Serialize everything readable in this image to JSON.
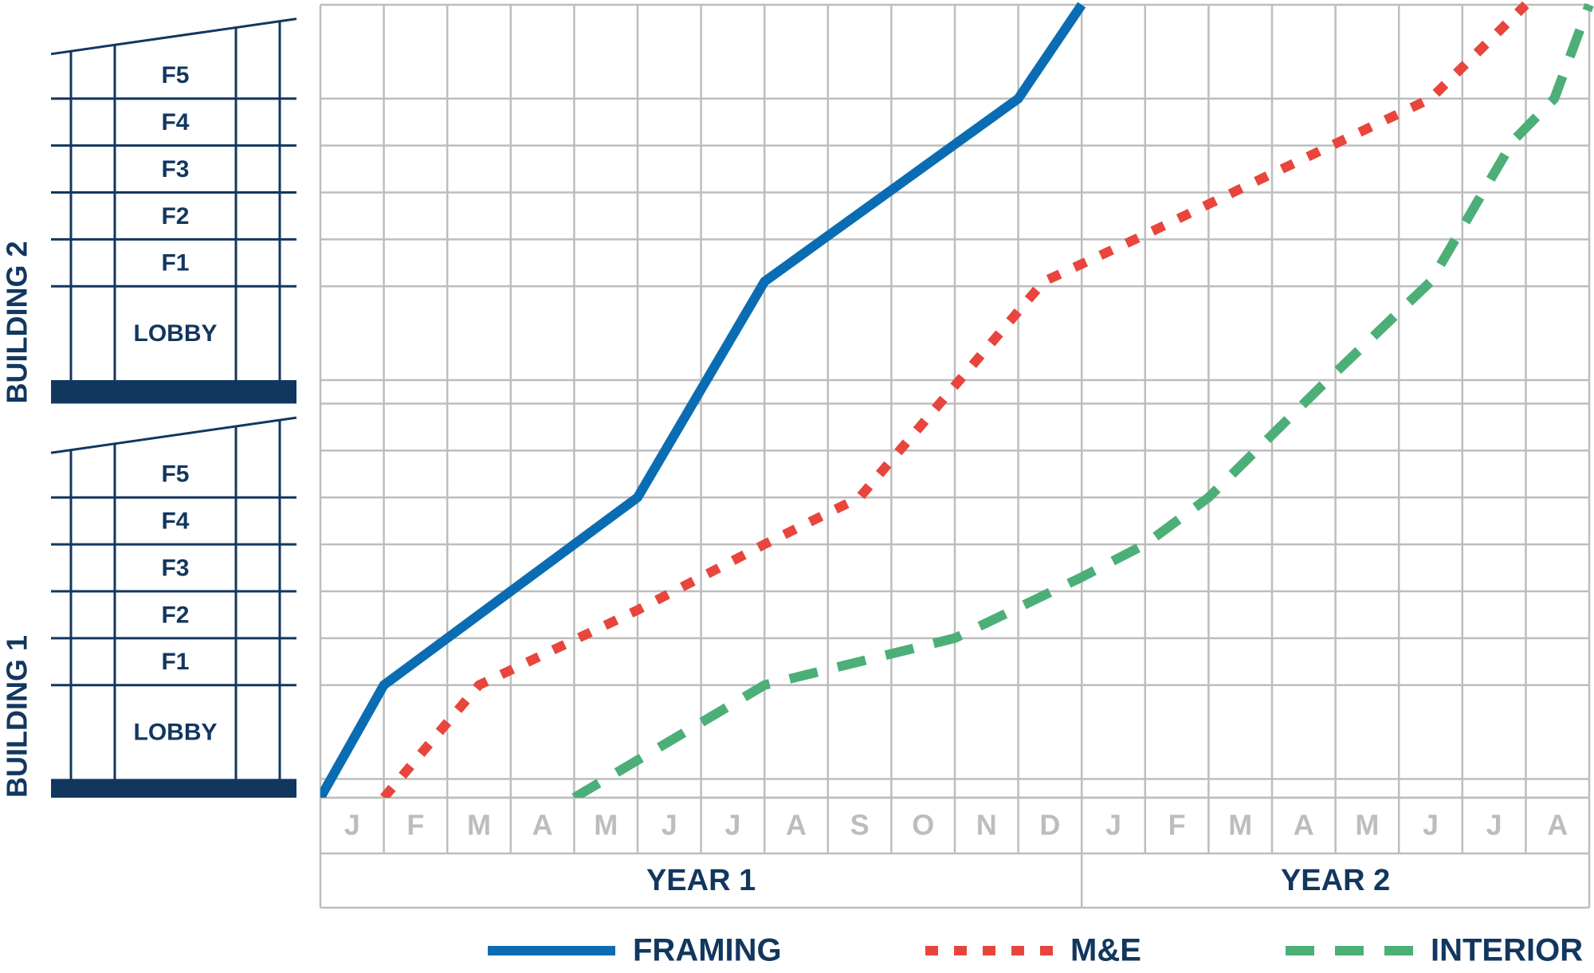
{
  "chart_data": {
    "type": "line",
    "categories": [
      "J",
      "F",
      "M",
      "A",
      "M",
      "J",
      "J",
      "A",
      "S",
      "O",
      "N",
      "D",
      "J",
      "F",
      "M",
      "A",
      "M",
      "J",
      "J",
      "A"
    ],
    "periods": [
      "YEAR 1",
      "YEAR 2"
    ],
    "xlim": [
      0,
      20
    ],
    "ylim": [
      0,
      16.9
    ],
    "yticks": [
      0,
      0.4,
      2.4,
      3.4,
      4.4,
      5.4,
      6.4,
      7.4,
      8.4,
      8.9,
      10.9,
      11.9,
      12.9,
      13.9,
      14.9,
      16.9
    ],
    "grid": true,
    "buildings": [
      {
        "name": "BUILDING 1",
        "floors": [
          "LOBBY",
          "F1",
          "F2",
          "F3",
          "F4",
          "F5"
        ]
      },
      {
        "name": "BUILDING 2",
        "floors": [
          "LOBBY",
          "F1",
          "F2",
          "F3",
          "F4",
          "F5"
        ]
      }
    ],
    "series": [
      {
        "name": "FRAMING",
        "color": "#0a6db3",
        "style": "solid",
        "x": [
          0,
          1,
          5,
          7,
          11,
          12
        ],
        "values": [
          0,
          2.4,
          6.4,
          11.0,
          14.9,
          16.9
        ]
      },
      {
        "name": "M&E",
        "color": "#e8453c",
        "style": "dotted",
        "x": [
          1,
          2.5,
          5,
          7,
          8.5,
          11.4,
          13,
          15,
          17.5,
          19
        ],
        "values": [
          0,
          2.4,
          4.0,
          5.4,
          6.4,
          11.0,
          12.0,
          13.3,
          14.9,
          16.9
        ]
      },
      {
        "name": "INTERIOR",
        "color": "#4caf78",
        "style": "dashed",
        "x": [
          4,
          7,
          10,
          12,
          13,
          14,
          15.8,
          17.5,
          18.8,
          19.45,
          20
        ],
        "values": [
          0,
          2.4,
          3.4,
          4.7,
          5.4,
          6.4,
          8.8,
          11.0,
          14.0,
          14.9,
          16.9
        ]
      }
    ]
  }
}
